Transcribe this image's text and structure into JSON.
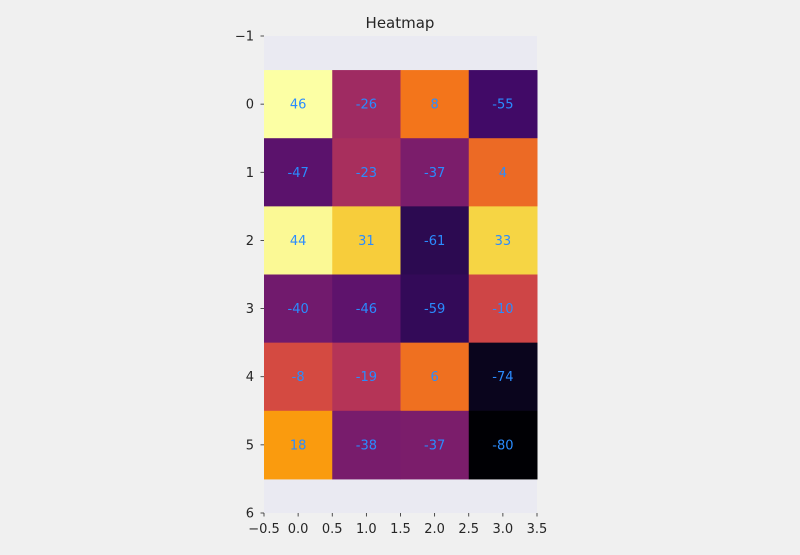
{
  "chart_data": {
    "type": "heatmap",
    "title": "Heatmap",
    "xlabel": "",
    "ylabel": "",
    "xlim": [
      -0.5,
      3.5
    ],
    "ylim": [
      -1,
      6
    ],
    "y_inverted": true,
    "x_ticks": [
      "−0.5",
      "0.0",
      "0.5",
      "1.0",
      "1.5",
      "2.0",
      "2.5",
      "3.0",
      "3.5"
    ],
    "x_tick_values": [
      -0.5,
      0.0,
      0.5,
      1.0,
      1.5,
      2.0,
      2.5,
      3.0,
      3.5
    ],
    "y_ticks": [
      "−1",
      "0",
      "1",
      "2",
      "3",
      "4",
      "5",
      "6"
    ],
    "y_tick_values": [
      -1,
      0,
      1,
      2,
      3,
      4,
      5,
      6
    ],
    "colormap": "inferno",
    "value_range": [
      -80,
      46
    ],
    "grid": false,
    "values": [
      [
        46,
        -26,
        8,
        -55
      ],
      [
        -47,
        -23,
        -37,
        4
      ],
      [
        44,
        31,
        -61,
        33
      ],
      [
        -40,
        -46,
        -59,
        -10
      ],
      [
        -8,
        -19,
        6,
        -74
      ],
      [
        18,
        -38,
        -37,
        -80
      ]
    ],
    "colors": {
      "figure_background": "#f0f0f0",
      "axes_background": "#eaeaf2",
      "cell_label": "#2a8cff",
      "tick_label": "#262626"
    }
  }
}
